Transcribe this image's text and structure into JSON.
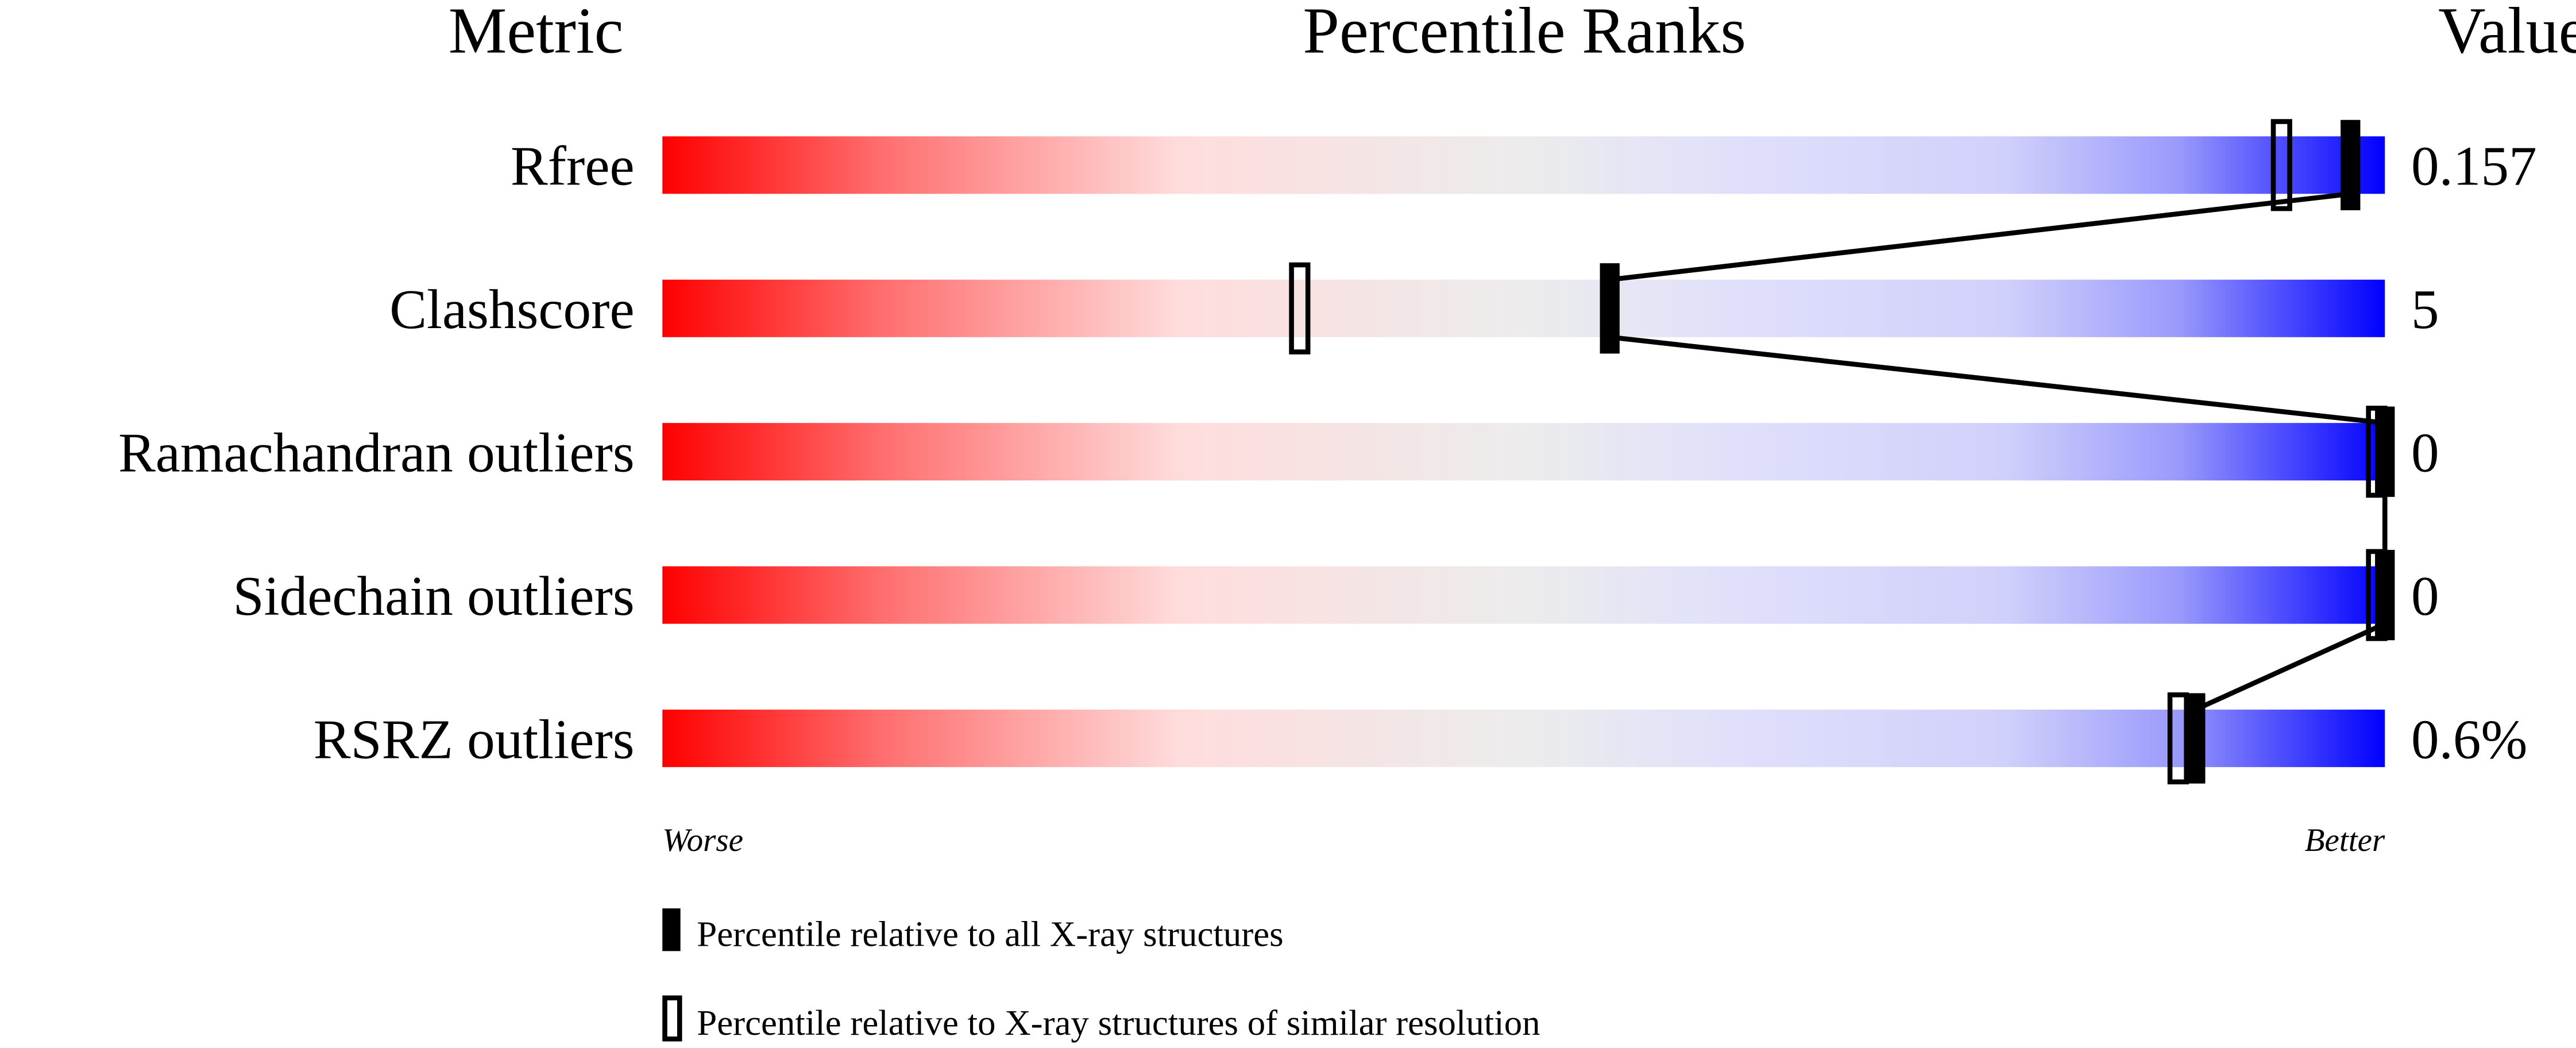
{
  "chart_data": {
    "type": "percentile-slider",
    "headers": {
      "metric": "Metric",
      "ranks": "Percentile Ranks",
      "value": "Value"
    },
    "xlim": [
      0,
      100
    ],
    "axis_labels": {
      "left": "Worse",
      "right": "Better"
    },
    "colors": {
      "worse": "#ff0000",
      "middle": "#eeeeee",
      "better": "#0000ff",
      "marker": "#000000"
    },
    "metrics": [
      {
        "name": "Rfree",
        "value": "0.157",
        "percentile_all": 98,
        "percentile_similar": 94
      },
      {
        "name": "Clashscore",
        "value": "5",
        "percentile_all": 55,
        "percentile_similar": 37
      },
      {
        "name": "Ramachandran outliers",
        "value": "0",
        "percentile_all": 100,
        "percentile_similar": 100
      },
      {
        "name": "Sidechain outliers",
        "value": "0",
        "percentile_all": 100,
        "percentile_similar": 100
      },
      {
        "name": "RSRZ outliers",
        "value": "0.6%",
        "percentile_all": 89,
        "percentile_similar": 88
      }
    ],
    "legend": [
      {
        "marker": "filled",
        "label": "Percentile relative to all X-ray structures"
      },
      {
        "marker": "open",
        "label": "Percentile relative to X-ray structures of similar resolution"
      }
    ]
  }
}
